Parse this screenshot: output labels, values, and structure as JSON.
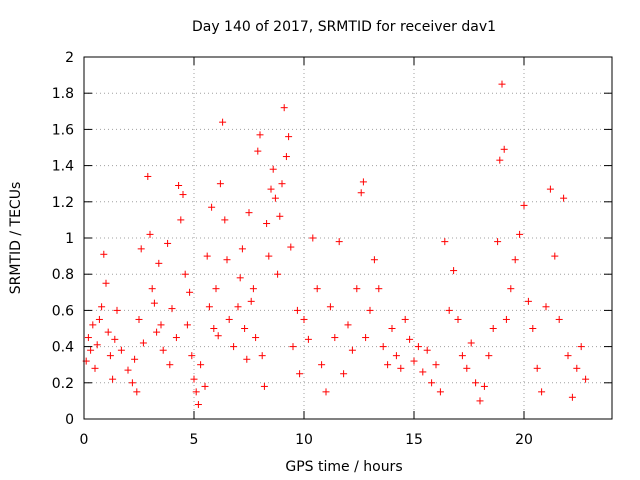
{
  "chart_data": {
    "type": "scatter",
    "title": "Day 140 of 2017, SRMTID for receiver dav1",
    "xlabel": "GPS time / hours",
    "ylabel": "SRMTID / TECUs",
    "xlim": [
      0,
      24
    ],
    "ylim": [
      0,
      2
    ],
    "xticks": [
      0,
      5,
      10,
      15,
      20
    ],
    "yticks": [
      0,
      0.2,
      0.4,
      0.6,
      0.8,
      1,
      1.2,
      1.4,
      1.6,
      1.8,
      2
    ],
    "xtick_labels": [
      "0",
      "5",
      "10",
      "15",
      "20"
    ],
    "ytick_labels": [
      "0",
      "0.2",
      "0.4",
      "0.6",
      "0.8",
      "1",
      "1.2",
      "1.4",
      "1.6",
      "1.8",
      "2"
    ],
    "grid": true,
    "marker": "+",
    "marker_color": "#ff0000",
    "series": [
      {
        "name": "SRMTID",
        "points": [
          [
            0.1,
            0.32
          ],
          [
            0.2,
            0.45
          ],
          [
            0.3,
            0.38
          ],
          [
            0.4,
            0.52
          ],
          [
            0.5,
            0.28
          ],
          [
            0.6,
            0.41
          ],
          [
            0.7,
            0.55
          ],
          [
            0.8,
            0.62
          ],
          [
            0.9,
            0.91
          ],
          [
            1.0,
            0.75
          ],
          [
            1.1,
            0.48
          ],
          [
            1.2,
            0.35
          ],
          [
            1.3,
            0.22
          ],
          [
            1.4,
            0.44
          ],
          [
            1.5,
            0.6
          ],
          [
            1.7,
            0.38
          ],
          [
            2.0,
            0.27
          ],
          [
            2.2,
            0.2
          ],
          [
            2.3,
            0.33
          ],
          [
            2.4,
            0.15
          ],
          [
            2.5,
            0.55
          ],
          [
            2.6,
            0.94
          ],
          [
            2.7,
            0.42
          ],
          [
            2.9,
            1.34
          ],
          [
            3.0,
            1.02
          ],
          [
            3.1,
            0.72
          ],
          [
            3.2,
            0.64
          ],
          [
            3.3,
            0.48
          ],
          [
            3.4,
            0.86
          ],
          [
            3.5,
            0.52
          ],
          [
            3.6,
            0.38
          ],
          [
            3.8,
            0.97
          ],
          [
            3.9,
            0.3
          ],
          [
            4.0,
            0.61
          ],
          [
            4.2,
            0.45
          ],
          [
            4.3,
            1.29
          ],
          [
            4.4,
            1.1
          ],
          [
            4.5,
            1.24
          ],
          [
            4.6,
            0.8
          ],
          [
            4.7,
            0.52
          ],
          [
            4.8,
            0.7
          ],
          [
            4.9,
            0.35
          ],
          [
            5.0,
            0.22
          ],
          [
            5.1,
            0.15
          ],
          [
            5.2,
            0.08
          ],
          [
            5.3,
            0.3
          ],
          [
            5.5,
            0.18
          ],
          [
            5.6,
            0.9
          ],
          [
            5.7,
            0.62
          ],
          [
            5.8,
            1.17
          ],
          [
            5.9,
            0.5
          ],
          [
            6.0,
            0.72
          ],
          [
            6.1,
            0.46
          ],
          [
            6.2,
            1.3
          ],
          [
            6.3,
            1.64
          ],
          [
            6.4,
            1.1
          ],
          [
            6.5,
            0.88
          ],
          [
            6.6,
            0.55
          ],
          [
            6.8,
            0.4
          ],
          [
            7.0,
            0.62
          ],
          [
            7.1,
            0.78
          ],
          [
            7.2,
            0.94
          ],
          [
            7.3,
            0.5
          ],
          [
            7.4,
            0.33
          ],
          [
            7.5,
            1.14
          ],
          [
            7.6,
            0.65
          ],
          [
            7.7,
            0.72
          ],
          [
            7.8,
            0.45
          ],
          [
            7.9,
            1.48
          ],
          [
            8.0,
            1.57
          ],
          [
            8.1,
            0.35
          ],
          [
            8.2,
            0.18
          ],
          [
            8.3,
            1.08
          ],
          [
            8.4,
            0.9
          ],
          [
            8.5,
            1.27
          ],
          [
            8.6,
            1.38
          ],
          [
            8.7,
            1.22
          ],
          [
            8.8,
            0.8
          ],
          [
            8.9,
            1.12
          ],
          [
            9.0,
            1.3
          ],
          [
            9.1,
            1.72
          ],
          [
            9.2,
            1.45
          ],
          [
            9.3,
            1.56
          ],
          [
            9.4,
            0.95
          ],
          [
            9.5,
            0.4
          ],
          [
            9.7,
            0.6
          ],
          [
            9.8,
            0.25
          ],
          [
            10.0,
            0.55
          ],
          [
            10.2,
            0.44
          ],
          [
            10.4,
            1.0
          ],
          [
            10.6,
            0.72
          ],
          [
            10.8,
            0.3
          ],
          [
            11.0,
            0.15
          ],
          [
            11.2,
            0.62
          ],
          [
            11.4,
            0.45
          ],
          [
            11.6,
            0.98
          ],
          [
            11.8,
            0.25
          ],
          [
            12.0,
            0.52
          ],
          [
            12.2,
            0.38
          ],
          [
            12.4,
            0.72
          ],
          [
            12.6,
            1.25
          ],
          [
            12.7,
            1.31
          ],
          [
            12.8,
            0.45
          ],
          [
            13.0,
            0.6
          ],
          [
            13.2,
            0.88
          ],
          [
            13.4,
            0.72
          ],
          [
            13.6,
            0.4
          ],
          [
            13.8,
            0.3
          ],
          [
            14.0,
            0.5
          ],
          [
            14.2,
            0.35
          ],
          [
            14.4,
            0.28
          ],
          [
            14.6,
            0.55
          ],
          [
            14.8,
            0.44
          ],
          [
            15.0,
            0.32
          ],
          [
            15.2,
            0.4
          ],
          [
            15.4,
            0.26
          ],
          [
            15.6,
            0.38
          ],
          [
            15.8,
            0.2
          ],
          [
            16.0,
            0.3
          ],
          [
            16.2,
            0.15
          ],
          [
            16.4,
            0.98
          ],
          [
            16.6,
            0.6
          ],
          [
            16.8,
            0.82
          ],
          [
            17.0,
            0.55
          ],
          [
            17.2,
            0.35
          ],
          [
            17.4,
            0.28
          ],
          [
            17.6,
            0.42
          ],
          [
            17.8,
            0.2
          ],
          [
            18.0,
            0.1
          ],
          [
            18.2,
            0.18
          ],
          [
            18.4,
            0.35
          ],
          [
            18.6,
            0.5
          ],
          [
            18.8,
            0.98
          ],
          [
            18.9,
            1.43
          ],
          [
            19.0,
            1.85
          ],
          [
            19.1,
            1.49
          ],
          [
            19.2,
            0.55
          ],
          [
            19.4,
            0.72
          ],
          [
            19.6,
            0.88
          ],
          [
            19.8,
            1.02
          ],
          [
            20.0,
            1.18
          ],
          [
            20.2,
            0.65
          ],
          [
            20.4,
            0.5
          ],
          [
            20.6,
            0.28
          ],
          [
            20.8,
            0.15
          ],
          [
            21.0,
            0.62
          ],
          [
            21.2,
            1.27
          ],
          [
            21.4,
            0.9
          ],
          [
            21.6,
            0.55
          ],
          [
            21.8,
            1.22
          ],
          [
            22.0,
            0.35
          ],
          [
            22.2,
            0.12
          ],
          [
            22.4,
            0.28
          ],
          [
            22.6,
            0.4
          ],
          [
            22.8,
            0.22
          ]
        ]
      }
    ]
  }
}
